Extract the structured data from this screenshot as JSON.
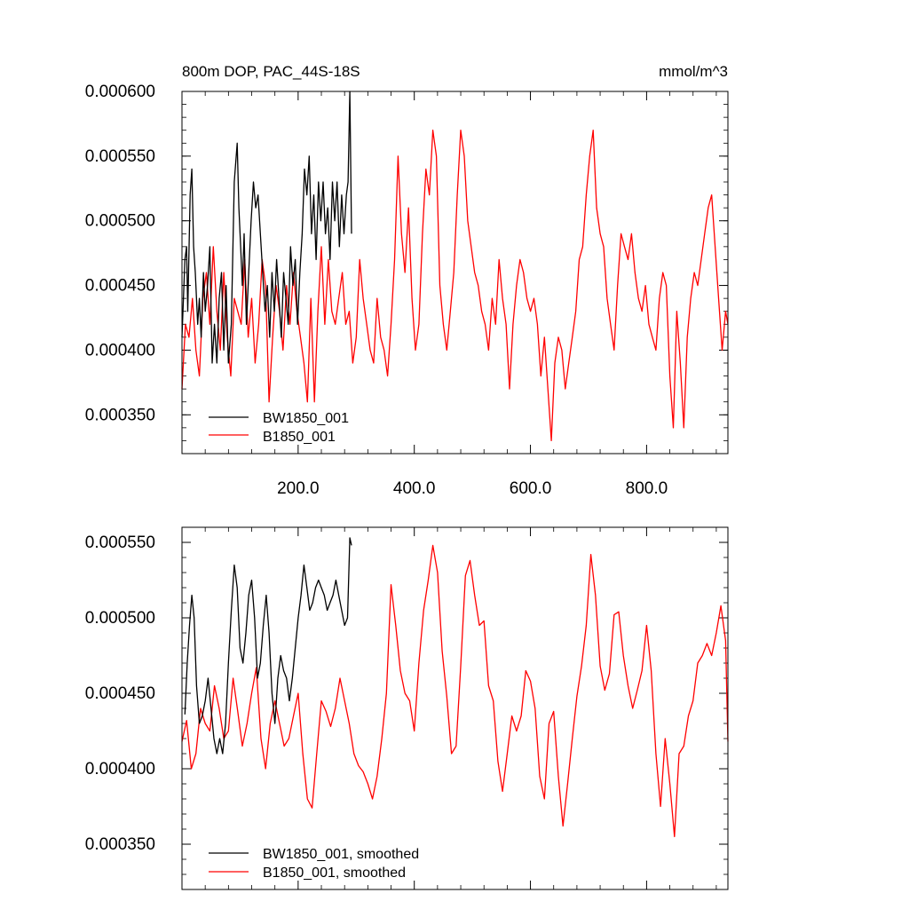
{
  "chart_data": [
    {
      "type": "line",
      "title": "800m DOP, PAC_44S-18S",
      "units": "mmol/m^3",
      "xlim": [
        0,
        940
      ],
      "ylim": [
        0.00032,
        0.0006
      ],
      "yticks": [
        0.00035,
        0.0004,
        0.00045,
        0.0005,
        0.00055,
        0.0006
      ],
      "ytick_labels": [
        "0.000350",
        "0.000400",
        "0.000450",
        "0.000500",
        "0.000550",
        "0.000600"
      ],
      "xticks": [
        200,
        400,
        600,
        800
      ],
      "xtick_labels": [
        "200.0",
        "400.0",
        "600.0",
        "800.0"
      ],
      "legend": [
        "BW1850_001",
        "B1850_001"
      ],
      "series": [
        {
          "name": "BW1850_001",
          "color": "#000000",
          "x": [
            0,
            5,
            8,
            10,
            14,
            17,
            20,
            23,
            27,
            30,
            33,
            37,
            40,
            44,
            48,
            52,
            56,
            60,
            64,
            68,
            72,
            76,
            80,
            85,
            90,
            95,
            98,
            101,
            104,
            107,
            111,
            115,
            119,
            123,
            127,
            131,
            135,
            139,
            143,
            147,
            151,
            155,
            159,
            163,
            167,
            171,
            175,
            179,
            183,
            187,
            191,
            195,
            199,
            203,
            207,
            211,
            215,
            219,
            223,
            227,
            231,
            235,
            239,
            243,
            247,
            251,
            255,
            259,
            263,
            267,
            271,
            275,
            279,
            283,
            286,
            289,
            292
          ],
          "values": [
            0.00041,
            0.00047,
            0.00048,
            0.00043,
            0.00052,
            0.00054,
            0.00048,
            0.00046,
            0.00042,
            0.00044,
            0.00041,
            0.00046,
            0.00043,
            0.00045,
            0.00048,
            0.00039,
            0.00042,
            0.00039,
            0.00044,
            0.00046,
            0.0004,
            0.00045,
            0.00039,
            0.00042,
            0.00053,
            0.00056,
            0.00051,
            0.00048,
            0.00045,
            0.00049,
            0.00042,
            0.00046,
            0.0005,
            0.00053,
            0.00051,
            0.00052,
            0.00049,
            0.00046,
            0.00043,
            0.00045,
            0.00041,
            0.00046,
            0.00043,
            0.00047,
            0.00044,
            0.00041,
            0.00046,
            0.00044,
            0.00042,
            0.00048,
            0.00045,
            0.00047,
            0.00042,
            0.00046,
            0.00049,
            0.00054,
            0.00052,
            0.00055,
            0.00049,
            0.00052,
            0.00047,
            0.00053,
            0.0005,
            0.00053,
            0.00049,
            0.00051,
            0.00047,
            0.00053,
            0.0005,
            0.00053,
            0.00048,
            0.00052,
            0.00049,
            0.00052,
            0.00053,
            0.0006,
            0.00049
          ]
        },
        {
          "name": "B1850_001",
          "color": "#ff0000",
          "x": [
            0,
            6,
            12,
            18,
            24,
            30,
            36,
            42,
            48,
            54,
            60,
            66,
            72,
            78,
            84,
            90,
            96,
            102,
            108,
            114,
            120,
            126,
            132,
            138,
            144,
            150,
            156,
            162,
            168,
            174,
            180,
            186,
            192,
            198,
            204,
            210,
            216,
            222,
            228,
            234,
            240,
            246,
            252,
            258,
            264,
            270,
            276,
            282,
            288,
            294,
            300,
            306,
            312,
            318,
            324,
            330,
            336,
            342,
            348,
            354,
            360,
            366,
            372,
            378,
            384,
            390,
            396,
            402,
            408,
            414,
            420,
            426,
            432,
            438,
            444,
            450,
            456,
            462,
            468,
            474,
            480,
            486,
            492,
            498,
            504,
            510,
            516,
            522,
            528,
            534,
            540,
            546,
            552,
            558,
            564,
            570,
            576,
            582,
            588,
            594,
            600,
            606,
            612,
            618,
            624,
            630,
            636,
            642,
            648,
            654,
            660,
            666,
            672,
            678,
            684,
            690,
            696,
            702,
            708,
            714,
            720,
            726,
            732,
            738,
            744,
            750,
            756,
            762,
            768,
            774,
            780,
            786,
            792,
            798,
            804,
            810,
            816,
            822,
            828,
            834,
            840,
            846,
            852,
            858,
            864,
            870,
            876,
            882,
            888,
            894,
            900,
            906,
            912,
            918,
            924,
            930,
            936,
            940
          ],
          "values": [
            0.00037,
            0.00042,
            0.00041,
            0.00044,
            0.0004,
            0.00038,
            0.00044,
            0.00046,
            0.00042,
            0.00048,
            0.00043,
            0.0004,
            0.00046,
            0.00041,
            0.00038,
            0.00044,
            0.00043,
            0.00042,
            0.00047,
            0.00041,
            0.00044,
            0.00039,
            0.00042,
            0.00047,
            0.00045,
            0.00036,
            0.00041,
            0.00045,
            0.00043,
            0.0004,
            0.00045,
            0.00042,
            0.00046,
            0.00043,
            0.00041,
            0.00039,
            0.00036,
            0.00044,
            0.00036,
            0.00043,
            0.00048,
            0.00042,
            0.00047,
            0.00043,
            0.00042,
            0.00044,
            0.00046,
            0.00042,
            0.00043,
            0.00039,
            0.00041,
            0.00047,
            0.00044,
            0.00042,
            0.0004,
            0.00039,
            0.00044,
            0.00041,
            0.0004,
            0.00038,
            0.00042,
            0.00047,
            0.00055,
            0.00049,
            0.00046,
            0.00051,
            0.00044,
            0.0004,
            0.00042,
            0.00049,
            0.00054,
            0.00052,
            0.00057,
            0.00055,
            0.00045,
            0.00042,
            0.0004,
            0.00043,
            0.00046,
            0.00052,
            0.00057,
            0.00055,
            0.0005,
            0.00048,
            0.00046,
            0.00045,
            0.00043,
            0.00042,
            0.0004,
            0.00044,
            0.00042,
            0.00047,
            0.00044,
            0.00042,
            0.00037,
            0.00042,
            0.00045,
            0.00047,
            0.00046,
            0.00044,
            0.00043,
            0.00044,
            0.00042,
            0.00038,
            0.00041,
            0.00037,
            0.00033,
            0.00039,
            0.00041,
            0.0004,
            0.00037,
            0.00039,
            0.00041,
            0.00043,
            0.00047,
            0.00048,
            0.00052,
            0.00055,
            0.00057,
            0.00051,
            0.00049,
            0.00048,
            0.00044,
            0.00042,
            0.0004,
            0.00045,
            0.00049,
            0.00048,
            0.00047,
            0.00049,
            0.00046,
            0.00044,
            0.00043,
            0.00045,
            0.00042,
            0.00041,
            0.0004,
            0.00044,
            0.00046,
            0.00045,
            0.00038,
            0.00034,
            0.00043,
            0.00039,
            0.00034,
            0.00041,
            0.00044,
            0.00046,
            0.00045,
            0.00047,
            0.00049,
            0.00051,
            0.00052,
            0.00048,
            0.00044,
            0.0004,
            0.00043,
            0.00042
          ]
        }
      ]
    },
    {
      "type": "line",
      "title": "",
      "xlim": [
        0,
        940
      ],
      "ylim": [
        0.00032,
        0.00056
      ],
      "yticks": [
        0.00035,
        0.0004,
        0.00045,
        0.0005,
        0.00055
      ],
      "ytick_labels": [
        "0.000350",
        "0.000400",
        "0.000450",
        "0.000500",
        "0.000550"
      ],
      "xticks": [
        200,
        400,
        600,
        800
      ],
      "legend": [
        "BW1850_001, smoothed",
        "B1850_001, smoothed"
      ],
      "series": [
        {
          "name": "BW1850_001, smoothed",
          "color": "#000000",
          "x": [
            5,
            9,
            13,
            17,
            21,
            25,
            30,
            35,
            40,
            45,
            50,
            55,
            60,
            65,
            70,
            75,
            80,
            85,
            90,
            95,
            100,
            105,
            110,
            115,
            120,
            125,
            130,
            135,
            140,
            145,
            150,
            155,
            160,
            165,
            170,
            175,
            180,
            185,
            190,
            195,
            200,
            205,
            210,
            215,
            220,
            225,
            230,
            235,
            240,
            245,
            250,
            255,
            260,
            265,
            270,
            275,
            280,
            285,
            289,
            292
          ],
          "values": [
            0.000436,
            0.00047,
            0.000495,
            0.000515,
            0.0005,
            0.000455,
            0.00043,
            0.000435,
            0.000445,
            0.00046,
            0.00044,
            0.00042,
            0.00041,
            0.00042,
            0.00041,
            0.00043,
            0.00047,
            0.000505,
            0.000535,
            0.00052,
            0.00048,
            0.00047,
            0.00049,
            0.000515,
            0.000525,
            0.0005,
            0.00046,
            0.00047,
            0.000495,
            0.000515,
            0.00049,
            0.00045,
            0.00043,
            0.00046,
            0.000475,
            0.000465,
            0.00046,
            0.000445,
            0.00046,
            0.00048,
            0.0005,
            0.000515,
            0.000535,
            0.00052,
            0.000505,
            0.00051,
            0.00052,
            0.000525,
            0.00052,
            0.000515,
            0.000505,
            0.00051,
            0.000515,
            0.000525,
            0.000515,
            0.000505,
            0.000495,
            0.0005,
            0.000553,
            0.000548
          ]
        },
        {
          "name": "B1850_001, smoothed",
          "color": "#ff0000",
          "x": [
            0,
            8,
            16,
            24,
            32,
            40,
            48,
            56,
            64,
            72,
            80,
            88,
            96,
            104,
            112,
            120,
            128,
            136,
            144,
            152,
            160,
            168,
            176,
            184,
            192,
            200,
            208,
            216,
            224,
            232,
            240,
            248,
            256,
            264,
            272,
            280,
            288,
            296,
            304,
            312,
            320,
            328,
            336,
            344,
            352,
            360,
            368,
            376,
            384,
            392,
            400,
            408,
            416,
            424,
            432,
            440,
            448,
            456,
            464,
            472,
            480,
            488,
            496,
            504,
            512,
            520,
            528,
            536,
            544,
            552,
            560,
            568,
            576,
            584,
            592,
            600,
            608,
            616,
            624,
            632,
            640,
            648,
            656,
            664,
            672,
            680,
            688,
            696,
            704,
            712,
            720,
            728,
            736,
            744,
            752,
            760,
            768,
            776,
            784,
            792,
            800,
            808,
            816,
            824,
            832,
            840,
            848,
            856,
            864,
            872,
            880,
            888,
            896,
            904,
            912,
            920,
            928,
            936,
            940
          ],
          "values": [
            0.000418,
            0.000432,
            0.0004,
            0.00041,
            0.00044,
            0.00043,
            0.000425,
            0.000455,
            0.00044,
            0.00042,
            0.000425,
            0.00046,
            0.000438,
            0.000415,
            0.00043,
            0.00045,
            0.000467,
            0.00042,
            0.0004,
            0.00043,
            0.000445,
            0.00043,
            0.000415,
            0.00042,
            0.000435,
            0.00045,
            0.00041,
            0.00038,
            0.000374,
            0.00041,
            0.000445,
            0.000438,
            0.000428,
            0.00044,
            0.00046,
            0.000445,
            0.00043,
            0.00041,
            0.000402,
            0.000398,
            0.00039,
            0.00038,
            0.000395,
            0.00042,
            0.00045,
            0.000522,
            0.000495,
            0.000465,
            0.00045,
            0.000445,
            0.000425,
            0.00047,
            0.000505,
            0.000525,
            0.000548,
            0.00053,
            0.000478,
            0.000448,
            0.00041,
            0.000415,
            0.000468,
            0.000528,
            0.000538,
            0.000515,
            0.000495,
            0.000498,
            0.000455,
            0.000445,
            0.000405,
            0.000385,
            0.00041,
            0.000435,
            0.000425,
            0.000435,
            0.000465,
            0.000458,
            0.00044,
            0.000395,
            0.00038,
            0.00043,
            0.000438,
            0.000395,
            0.000362,
            0.00039,
            0.00042,
            0.000448,
            0.000468,
            0.000495,
            0.000542,
            0.000515,
            0.000468,
            0.000452,
            0.000463,
            0.000502,
            0.000504,
            0.000475,
            0.000455,
            0.00044,
            0.000452,
            0.000465,
            0.000495,
            0.000465,
            0.00041,
            0.000375,
            0.00042,
            0.00039,
            0.000355,
            0.00041,
            0.000415,
            0.000435,
            0.000445,
            0.00047,
            0.000475,
            0.000483,
            0.000475,
            0.00049,
            0.000508,
            0.000485,
            0.000418
          ]
        }
      ]
    }
  ]
}
